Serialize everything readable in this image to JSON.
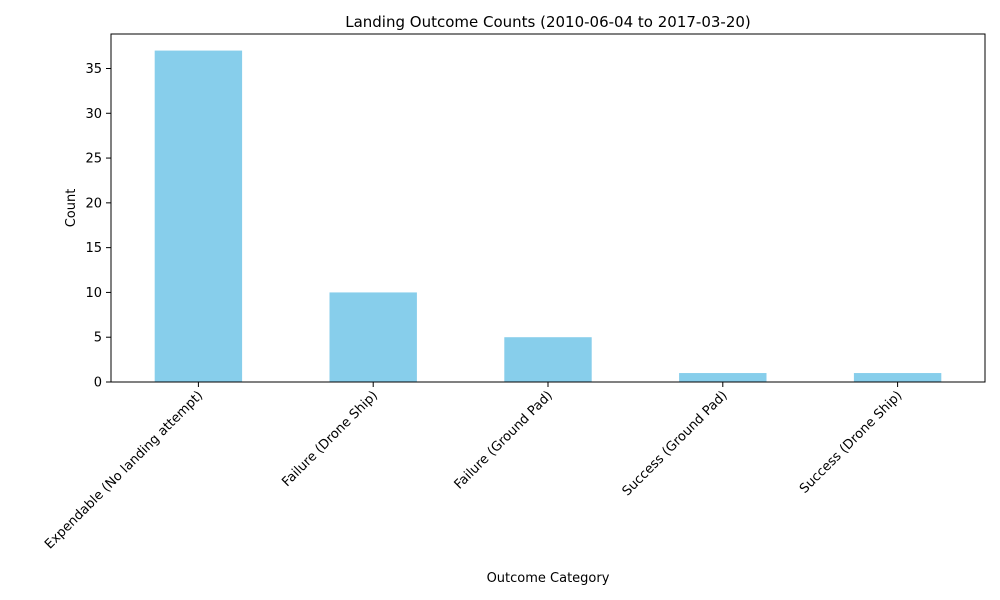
{
  "chart_data": {
    "type": "bar",
    "title": "Landing Outcome Counts (2010-06-04 to 2017-03-20)",
    "xlabel": "Outcome Category",
    "ylabel": "Count",
    "categories": [
      "Expendable (No landing attempt)",
      "Failure (Drone Ship)",
      "Failure (Ground Pad)",
      "Success (Ground Pad)",
      "Success (Drone Ship)"
    ],
    "values": [
      37,
      10,
      5,
      1,
      1
    ],
    "ylim": [
      0,
      38.85
    ],
    "yticks": [
      0,
      5,
      10,
      15,
      20,
      25,
      30,
      35
    ],
    "bar_color": "#87ceeb",
    "grid": false,
    "legend": "none"
  }
}
